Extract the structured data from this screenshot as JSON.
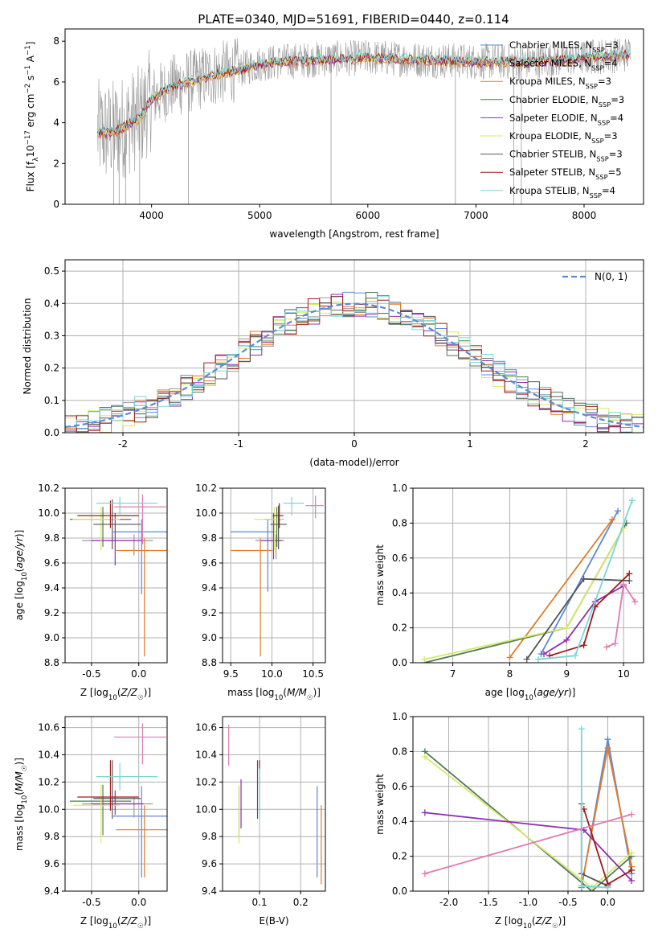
{
  "figure_title": "PLATE=0340, MJD=51691, FIBERID=0440, z=0.114",
  "colors": {
    "chabrier_miles": "#5b8ad6",
    "salpeter_miles": "#9a9a9a",
    "kroupa_miles": "#e07b2a",
    "chabrier_elodie": "#4f7a57",
    "salpeter_elodie": "#8e2fb0",
    "kroupa_elodie": "#d8e86a",
    "chabrier_stelib": "#555555",
    "salpeter_stelib": "#9e1b1b",
    "kroupa_stelib": "#7ad6d6",
    "extra_pink": "#e07ab0",
    "normal_curve": "#5b8ad6",
    "grid": "#b0b0b0"
  },
  "legend_labels": [
    "Chabrier MILES, N_SSP=3",
    "Salpeter MILES, N_SSP=4",
    "Kroupa MILES, N_SSP=3",
    "Chabrier ELODIE, N_SSP=3",
    "Salpeter ELODIE, N_SSP=4",
    "Kroupa ELODIE, N_SSP=3",
    "Chabrier STELIB, N_SSP=3",
    "Salpeter STELIB, N_SSP=5",
    "Kroupa STELIB, N_SSP=4"
  ],
  "chart_data": [
    {
      "id": "spectrum",
      "type": "line",
      "xlabel": "wavelength [Angstrom, rest frame]",
      "ylabel": "Flux [f_λ 10^-17 erg cm^-2 s^-1 A^-1]",
      "xlim": [
        3200,
        8550
      ],
      "ylim": [
        0,
        8.6
      ],
      "xticks": [
        4000,
        5000,
        6000,
        7000,
        8000
      ],
      "yticks": [
        0,
        2,
        4,
        6,
        8
      ],
      "continuum": {
        "x": [
          3500,
          3600,
          3700,
          3800,
          3900,
          4000,
          4100,
          4200,
          4400,
          4600,
          4800,
          5000,
          5200,
          5500,
          6000,
          6500,
          7000,
          7500,
          8000,
          8500
        ],
        "y": [
          3.6,
          3.5,
          3.7,
          4.0,
          4.3,
          5.2,
          5.5,
          5.8,
          6.1,
          6.4,
          6.6,
          6.9,
          7.0,
          7.1,
          7.2,
          7.1,
          7.0,
          7.0,
          7.2,
          7.4
        ]
      }
    },
    {
      "id": "residuals",
      "type": "bar",
      "xlabel": "(data-model)/error",
      "ylabel": "Normed distribution",
      "xlim": [
        -2.5,
        2.5
      ],
      "ylim": [
        0,
        0.535
      ],
      "xticks": [
        -2,
        -1,
        0,
        1,
        2
      ],
      "yticks": [
        0.0,
        0.1,
        0.2,
        0.3,
        0.4,
        0.5
      ],
      "legend": "N(0, 1)",
      "bin_width": 0.1
    },
    {
      "id": "age_vs_Z",
      "type": "scatter",
      "xlabel": "Z [log10(Z/Z☉)]",
      "ylabel": "age [log10(age/yr)]",
      "xlim": [
        -0.78,
        0.3
      ],
      "ylim": [
        8.8,
        10.2
      ],
      "xticks": [
        -0.5,
        0.0
      ],
      "yticks": [
        8.8,
        9.0,
        9.2,
        9.4,
        9.6,
        9.8,
        10.0,
        10.2
      ],
      "points": [
        {
          "x": 0.03,
          "y": 9.85,
          "xerr": [
            0.3,
            0.3
          ],
          "yerr": [
            0.5,
            0.1
          ],
          "c": "chabrier_miles"
        },
        {
          "x": -0.05,
          "y": 9.78,
          "xerr": [
            0.55,
            0.2
          ],
          "yerr": [
            0.12,
            0.05
          ],
          "c": "salpeter_miles"
        },
        {
          "x": 0.06,
          "y": 9.7,
          "xerr": [
            0.3,
            0.25
          ],
          "yerr": [
            0.85,
            0.1
          ],
          "c": "kroupa_miles"
        },
        {
          "x": -0.38,
          "y": 9.95,
          "xerr": [
            0.35,
            0.3
          ],
          "yerr": [
            0.22,
            0.1
          ],
          "c": "chabrier_elodie"
        },
        {
          "x": -0.25,
          "y": 9.78,
          "xerr": [
            0.25,
            0.3
          ],
          "yerr": [
            0.2,
            0.22
          ],
          "c": "salpeter_elodie"
        },
        {
          "x": -0.4,
          "y": 9.95,
          "xerr": [
            0.3,
            0.2
          ],
          "yerr": [
            0.25,
            0.1
          ],
          "c": "kroupa_elodie"
        },
        {
          "x": -0.28,
          "y": 9.91,
          "xerr": [
            0.2,
            0.3
          ],
          "yerr": [
            0.2,
            0.2
          ],
          "c": "chabrier_stelib"
        },
        {
          "x": -0.3,
          "y": 9.98,
          "xerr": [
            0.35,
            0.3
          ],
          "yerr": [
            0.1,
            0.12
          ],
          "c": "salpeter_stelib"
        },
        {
          "x": -0.2,
          "y": 10.08,
          "xerr": [
            0.25,
            0.4
          ],
          "yerr": [
            0.1,
            0.05
          ],
          "c": "kroupa_stelib"
        },
        {
          "x": 0.04,
          "y": 10.05,
          "xerr": [
            0.3,
            0.25
          ],
          "yerr": [
            0.3,
            0.1
          ],
          "c": "extra_pink"
        }
      ]
    },
    {
      "id": "age_vs_mass",
      "type": "scatter",
      "xlabel": "mass [log10(M/M☉)]",
      "ylabel": "",
      "xlim": [
        9.4,
        10.65
      ],
      "ylim": [
        8.8,
        10.2
      ],
      "xticks": [
        9.5,
        10.0,
        10.5
      ],
      "yticks": [
        8.8,
        9.0,
        9.2,
        9.4,
        9.6,
        9.8,
        10.0,
        10.2
      ],
      "points": [
        {
          "x": 9.95,
          "y": 9.85,
          "xerr": [
            0.45,
            0.1
          ],
          "yerr": [
            0.48,
            0.1
          ],
          "c": "chabrier_miles"
        },
        {
          "x": 10.05,
          "y": 9.78,
          "xerr": [
            0.25,
            0.1
          ],
          "yerr": [
            0.15,
            0.05
          ],
          "c": "salpeter_miles"
        },
        {
          "x": 9.86,
          "y": 9.7,
          "xerr": [
            0.36,
            0.15
          ],
          "yerr": [
            0.85,
            0.1
          ],
          "c": "kroupa_miles"
        },
        {
          "x": 10.06,
          "y": 9.95,
          "xerr": [
            0.15,
            0.08
          ],
          "yerr": [
            0.22,
            0.1
          ],
          "c": "chabrier_elodie"
        },
        {
          "x": 10.02,
          "y": 9.78,
          "xerr": [
            0.15,
            0.1
          ],
          "yerr": [
            0.15,
            0.22
          ],
          "c": "salpeter_elodie"
        },
        {
          "x": 10.03,
          "y": 9.95,
          "xerr": [
            0.25,
            0.1
          ],
          "yerr": [
            0.25,
            0.1
          ],
          "c": "kroupa_elodie"
        },
        {
          "x": 10.08,
          "y": 9.91,
          "xerr": [
            0.1,
            0.1
          ],
          "yerr": [
            0.2,
            0.15
          ],
          "c": "chabrier_stelib"
        },
        {
          "x": 10.09,
          "y": 9.98,
          "xerr": [
            0.08,
            0.05
          ],
          "yerr": [
            0.1,
            0.1
          ],
          "c": "salpeter_stelib"
        },
        {
          "x": 10.24,
          "y": 10.08,
          "xerr": [
            0.1,
            0.15
          ],
          "yerr": [
            0.1,
            0.05
          ],
          "c": "kroupa_stelib"
        },
        {
          "x": 10.53,
          "y": 10.06,
          "xerr": [
            0.12,
            0.1
          ],
          "yerr": [
            0.1,
            0.08
          ],
          "c": "extra_pink"
        }
      ]
    },
    {
      "id": "massweight_vs_age",
      "type": "line",
      "xlabel": "age [log10(age/yr)]",
      "ylabel": "mass weight",
      "xlim": [
        6.3,
        10.35
      ],
      "ylim": [
        0,
        1.0
      ],
      "xticks": [
        7,
        8,
        9,
        10
      ],
      "yticks": [
        0.0,
        0.2,
        0.4,
        0.6,
        0.8,
        1.0
      ],
      "series": [
        {
          "c": "chabrier_miles",
          "x": [
            8.55,
            9.9
          ],
          "y": [
            0.05,
            0.87
          ]
        },
        {
          "c": "kroupa_miles",
          "x": [
            8.0,
            9.8
          ],
          "y": [
            0.03,
            0.82
          ]
        },
        {
          "c": "chabrier_elodie",
          "x": [
            6.5,
            9.0,
            10.05
          ],
          "y": [
            0.0,
            0.2,
            0.8
          ]
        },
        {
          "c": "kroupa_elodie",
          "x": [
            6.5,
            9.0,
            10.0
          ],
          "y": [
            0.02,
            0.2,
            0.77
          ]
        },
        {
          "c": "salpeter_elodie",
          "x": [
            8.6,
            9.0,
            9.5,
            10.0
          ],
          "y": [
            0.05,
            0.13,
            0.35,
            0.44
          ]
        },
        {
          "c": "chabrier_stelib",
          "x": [
            8.3,
            9.3,
            10.1
          ],
          "y": [
            0.02,
            0.48,
            0.47
          ]
        },
        {
          "c": "salpeter_stelib",
          "x": [
            8.7,
            9.3,
            9.5,
            10.1
          ],
          "y": [
            0.04,
            0.1,
            0.32,
            0.51
          ]
        },
        {
          "c": "kroupa_stelib",
          "x": [
            8.5,
            9.15,
            10.15
          ],
          "y": [
            0.02,
            0.04,
            0.93
          ]
        },
        {
          "c": "extra_pink",
          "x": [
            9.7,
            9.85,
            10.0,
            10.2
          ],
          "y": [
            0.09,
            0.11,
            0.45,
            0.35
          ]
        }
      ]
    },
    {
      "id": "mass_vs_Z",
      "type": "scatter",
      "xlabel": "Z [log10(Z/Z☉)]",
      "ylabel": "mass [log10(M/M☉)]",
      "xlim": [
        -0.78,
        0.3
      ],
      "ylim": [
        9.4,
        10.68
      ],
      "xticks": [
        -0.5,
        0.0
      ],
      "yticks": [
        9.4,
        9.6,
        9.8,
        10.0,
        10.2,
        10.4,
        10.6
      ],
      "points": [
        {
          "x": 0.03,
          "y": 9.95,
          "xerr": [
            0.3,
            0.3
          ],
          "yerr": [
            0.45,
            0.22
          ],
          "c": "chabrier_miles"
        },
        {
          "x": -0.05,
          "y": 10.04,
          "xerr": [
            0.55,
            0.2
          ],
          "yerr": [
            0.1,
            0.05
          ],
          "c": "salpeter_miles"
        },
        {
          "x": 0.06,
          "y": 9.85,
          "xerr": [
            0.3,
            0.25
          ],
          "yerr": [
            0.35,
            0.18
          ],
          "c": "kroupa_miles"
        },
        {
          "x": -0.38,
          "y": 10.06,
          "xerr": [
            0.35,
            0.3
          ],
          "yerr": [
            0.25,
            0.12
          ],
          "c": "chabrier_elodie"
        },
        {
          "x": -0.25,
          "y": 10.04,
          "xerr": [
            0.25,
            0.3
          ],
          "yerr": [
            0.08,
            0.1
          ],
          "c": "salpeter_elodie"
        },
        {
          "x": -0.4,
          "y": 10.03,
          "xerr": [
            0.3,
            0.2
          ],
          "yerr": [
            0.28,
            0.15
          ],
          "c": "kroupa_elodie"
        },
        {
          "x": -0.28,
          "y": 10.08,
          "xerr": [
            0.2,
            0.3
          ],
          "yerr": [
            0.15,
            0.28
          ],
          "c": "chabrier_stelib"
        },
        {
          "x": -0.3,
          "y": 10.09,
          "xerr": [
            0.35,
            0.3
          ],
          "yerr": [
            0.1,
            0.27
          ],
          "c": "salpeter_stelib"
        },
        {
          "x": -0.2,
          "y": 10.24,
          "xerr": [
            0.25,
            0.4
          ],
          "yerr": [
            0.1,
            0.1
          ],
          "c": "kroupa_stelib"
        },
        {
          "x": 0.04,
          "y": 10.53,
          "xerr": [
            0.3,
            0.25
          ],
          "yerr": [
            0.2,
            0.1
          ],
          "c": "extra_pink"
        }
      ]
    },
    {
      "id": "mass_vs_ebv",
      "type": "scatter",
      "xlabel": "E(B-V)",
      "ylabel": "",
      "xlim": [
        0.01,
        0.26
      ],
      "ylim": [
        9.4,
        10.68
      ],
      "xticks": [
        0.1,
        0.2
      ],
      "yticks": [
        9.4,
        9.6,
        9.8,
        10.0,
        10.2,
        10.4,
        10.6
      ],
      "points": [
        {
          "x": 0.24,
          "y": 9.95,
          "yerr": [
            0.45,
            0.22
          ],
          "c": "chabrier_miles"
        },
        {
          "x": 0.25,
          "y": 9.85,
          "yerr": [
            0.4,
            0.18
          ],
          "c": "kroupa_miles"
        },
        {
          "x": 0.05,
          "y": 10.04,
          "yerr": [
            0.25,
            0.12
          ],
          "c": "chabrier_elodie"
        },
        {
          "x": 0.055,
          "y": 10.06,
          "yerr": [
            0.2,
            0.16
          ],
          "c": "salpeter_elodie"
        },
        {
          "x": 0.05,
          "y": 10.03,
          "yerr": [
            0.28,
            0.15
          ],
          "c": "kroupa_elodie"
        },
        {
          "x": 0.095,
          "y": 10.08,
          "yerr": [
            0.15,
            0.28
          ],
          "c": "chabrier_stelib"
        },
        {
          "x": 0.1,
          "y": 10.09,
          "yerr": [
            0.1,
            0.27
          ],
          "c": "salpeter_stelib"
        },
        {
          "x": 0.1,
          "y": 10.08,
          "yerr": [
            0.16,
            0.22
          ],
          "c": "kroupa_stelib"
        },
        {
          "x": 0.025,
          "y": 10.5,
          "yerr": [
            0.18,
            0.12
          ],
          "c": "extra_pink"
        }
      ]
    },
    {
      "id": "massweight_vs_Z",
      "type": "line",
      "xlabel": "Z [log10(Z/Z☉)]",
      "ylabel": "mass weight",
      "xlim": [
        -2.45,
        0.45
      ],
      "ylim": [
        0,
        1.0
      ],
      "xticks": [
        -2.0,
        -1.5,
        -1.0,
        -0.5,
        0.0
      ],
      "yticks": [
        0.0,
        0.2,
        0.4,
        0.6,
        0.8,
        1.0
      ],
      "series": [
        {
          "c": "chabrier_miles",
          "x": [
            -0.33,
            0.0,
            0.3
          ],
          "y": [
            0.02,
            0.87,
            0.1
          ]
        },
        {
          "c": "kroupa_miles",
          "x": [
            -0.33,
            0.0,
            0.3
          ],
          "y": [
            0.03,
            0.82,
            0.14
          ]
        },
        {
          "c": "chabrier_elodie",
          "x": [
            -2.3,
            -0.2,
            0.3
          ],
          "y": [
            0.8,
            0.0,
            0.2
          ]
        },
        {
          "c": "kroupa_elodie",
          "x": [
            -2.3,
            -0.2,
            0.3
          ],
          "y": [
            0.77,
            0.02,
            0.22
          ]
        },
        {
          "c": "salpeter_elodie",
          "x": [
            -2.3,
            -0.3,
            0.3
          ],
          "y": [
            0.45,
            0.35,
            0.06
          ]
        },
        {
          "c": "chabrier_stelib",
          "x": [
            -0.33,
            -0.33,
            0.0
          ],
          "y": [
            0.5,
            0.1,
            0.03
          ]
        },
        {
          "c": "salpeter_stelib",
          "x": [
            -0.3,
            0.0,
            0.3
          ],
          "y": [
            0.47,
            0.04,
            0.12
          ]
        },
        {
          "c": "kroupa_stelib",
          "x": [
            -0.33,
            -0.33,
            0.0
          ],
          "y": [
            0.93,
            0.03,
            0.02
          ]
        },
        {
          "c": "extra_pink",
          "x": [
            -2.3,
            0.3
          ],
          "y": [
            0.1,
            0.44
          ]
        }
      ]
    }
  ]
}
